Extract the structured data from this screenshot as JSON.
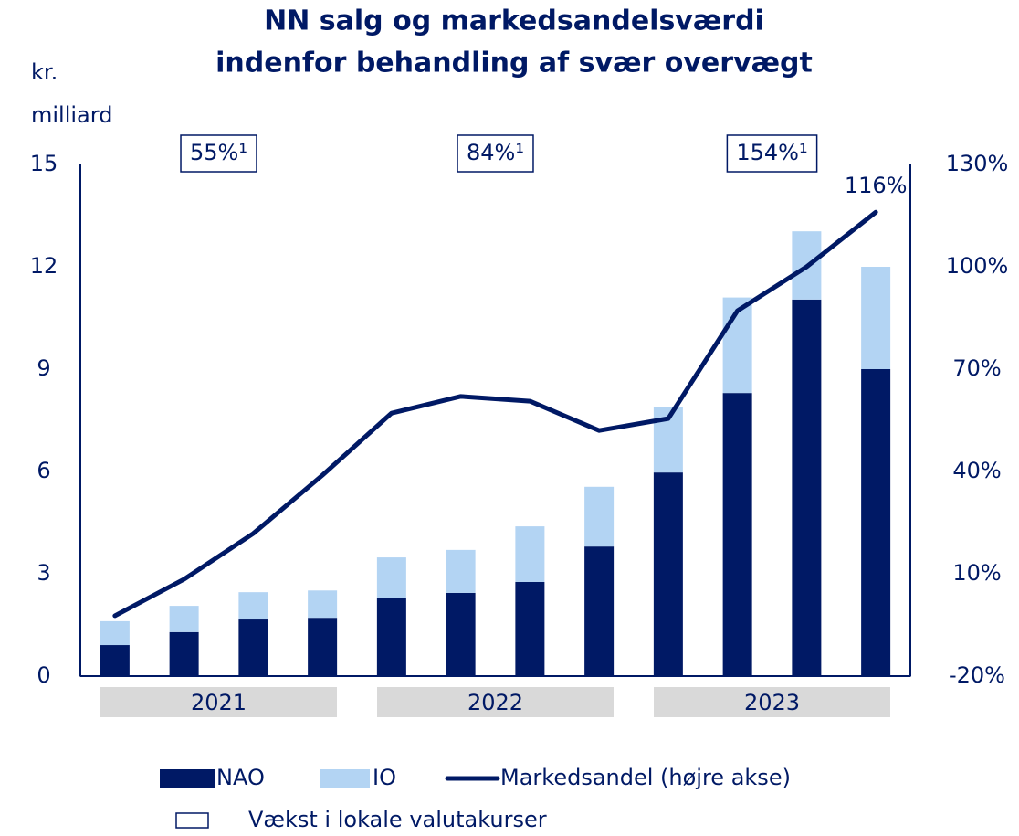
{
  "chart_data": {
    "type": "bar",
    "title": [
      "NN salg og markedsandelsværdi",
      "indenfor behandling af svær overvægt"
    ],
    "ylabel": [
      "kr.",
      "milliard"
    ],
    "categories": [
      null,
      null,
      null,
      null,
      null,
      null,
      null,
      null,
      null,
      null,
      null,
      null
    ],
    "groups": [
      {
        "label": "2021",
        "size": 4
      },
      {
        "label": "2022",
        "size": 4
      },
      {
        "label": "2023",
        "size": 4
      }
    ],
    "stacked": true,
    "series": [
      {
        "name": "NAO",
        "color": "#001965",
        "values": [
          0.91,
          1.29,
          1.66,
          1.71,
          2.28,
          2.44,
          2.76,
          3.8,
          5.97,
          8.3,
          11.04,
          9.0
        ]
      },
      {
        "name": "IO",
        "color": "#b3d4f3",
        "values": [
          0.7,
          0.77,
          0.8,
          0.8,
          1.2,
          1.26,
          1.63,
          1.75,
          1.93,
          2.8,
          2.0,
          3.0
        ]
      },
      {
        "name": "Markedsandel (højre akse)",
        "color": "#001965",
        "type": "line",
        "axis": "y2",
        "values": [
          -2.3,
          8.4,
          21.8,
          38.9,
          57.1,
          62,
          60.6,
          52,
          55.5,
          87.1,
          100,
          116
        ]
      }
    ],
    "ylim": [
      0,
      15
    ],
    "yticks": [
      0,
      3,
      6,
      9,
      12,
      15
    ],
    "y2lim": [
      -20,
      130
    ],
    "y2ticks": [
      {
        "value": -20,
        "label": "-20%"
      },
      {
        "value": 10,
        "label": "10%"
      },
      {
        "value": 40,
        "label": "40%"
      },
      {
        "value": 70,
        "label": "70%"
      },
      {
        "value": 100,
        "label": "100%"
      },
      {
        "value": 130,
        "label": "130%"
      }
    ],
    "annotations": [
      {
        "text": "55%¹",
        "group": 0,
        "boxed": true
      },
      {
        "text": "84%¹",
        "group": 1,
        "boxed": true
      },
      {
        "text": "154%¹",
        "group": 2,
        "boxed": true
      },
      {
        "text": "116%",
        "point": 11,
        "boxed": false
      }
    ],
    "legend_extra": "Vækst i lokale valutakurser",
    "grid": false
  }
}
